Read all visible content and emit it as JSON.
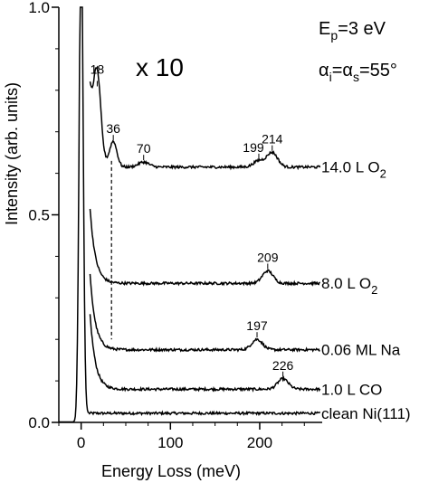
{
  "chart_data": {
    "type": "line",
    "xlabel": "Energy Loss (meV)",
    "ylabel": "Intensity (arb. units)",
    "xlim": [
      -25,
      270
    ],
    "ylim": [
      0,
      1.0
    ],
    "x_ticks": [
      0,
      100,
      200
    ],
    "x_tick_labels": [
      "0",
      "100",
      "200"
    ],
    "y_ticks": [
      0.0,
      0.5,
      1.0
    ],
    "y_tick_labels": [
      "0.0",
      "0.5",
      "1.0"
    ],
    "multiplier_label": "x 10",
    "conditions": {
      "energy": "E_p=3 eV",
      "energy_main": "E",
      "energy_sub": "p",
      "energy_rest": "=3 eV",
      "angle_alpha": "α",
      "angle_sub_i": "i",
      "angle_eq": "=",
      "angle_sub_s": "s",
      "angle_rest": "=55°"
    },
    "dashed_guide_x": 34,
    "series": [
      {
        "name": "clean Ni(111)",
        "baseline": 0.022,
        "start_x": 10,
        "elastic_peak": true,
        "peaks": [],
        "label_parts": [
          "clean Ni(111)"
        ]
      },
      {
        "name": "1.0 L CO",
        "baseline": 0.08,
        "start_x": 10,
        "elastic_peak": false,
        "peaks": [
          {
            "x": 226,
            "height": 0.025,
            "label": "226"
          }
        ],
        "label_parts": [
          "1.0 L CO"
        ]
      },
      {
        "name": "0.06 ML Na",
        "baseline": 0.175,
        "start_x": 10,
        "elastic_peak": false,
        "peaks": [
          {
            "x": 197,
            "height": 0.025,
            "label": "197"
          }
        ],
        "label_parts": [
          "0.06 ML Na"
        ]
      },
      {
        "name": "8.0 L O2",
        "baseline": 0.335,
        "start_x": 10,
        "elastic_peak": false,
        "peaks": [
          {
            "x": 209,
            "height": 0.03,
            "label": "209"
          }
        ],
        "label_parts": [
          "8.0 L O",
          "2"
        ]
      },
      {
        "name": "14.0 L O2",
        "baseline": 0.615,
        "start_x": 10,
        "elastic_peak": false,
        "peaks": [
          {
            "x": 18,
            "height": 0.19,
            "label": "18"
          },
          {
            "x": 36,
            "height": 0.06,
            "label": "36"
          },
          {
            "x": 70,
            "height": 0.012,
            "label": "70"
          },
          {
            "x": 199,
            "height": 0.015,
            "label": "199"
          },
          {
            "x": 214,
            "height": 0.035,
            "label": "214"
          }
        ],
        "label_parts": [
          "14.0 L O",
          "2"
        ]
      }
    ]
  }
}
